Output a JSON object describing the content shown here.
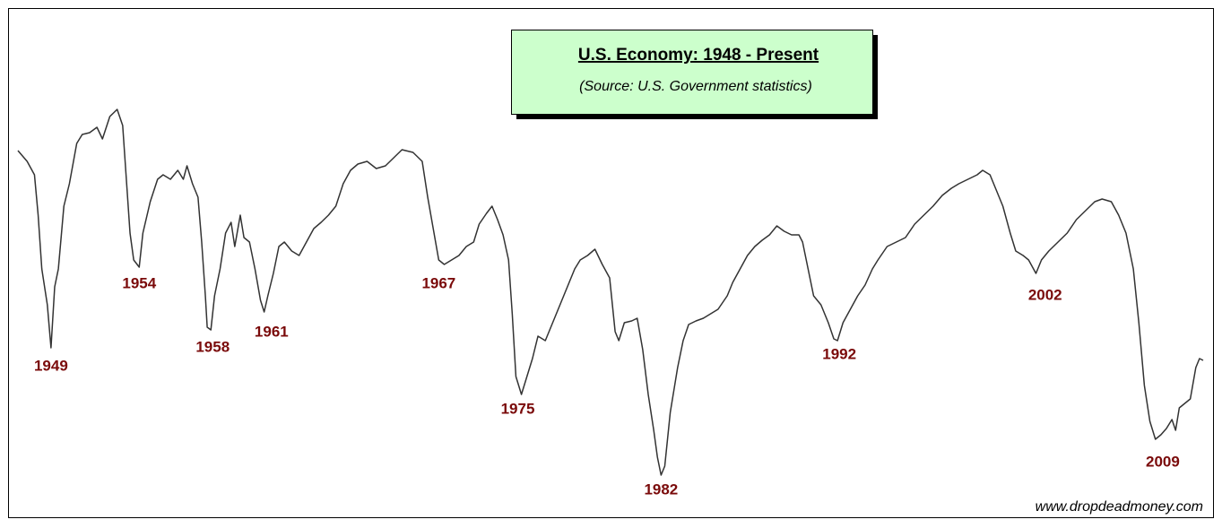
{
  "chart_data": {
    "type": "line",
    "title": "U.S. Economy: 1948 - Present",
    "subtitle": "(Source: U.S. Government statistics)",
    "credit": "www.dropdeadmoney.com",
    "xlim": [
      1948,
      2012.5
    ],
    "ylim": [
      0,
      100
    ],
    "series": [
      {
        "color": "#333333",
        "x": [
          1948.0,
          1948.5,
          1948.9,
          1949.1,
          1949.3,
          1949.6,
          1949.8,
          1950.0,
          1950.2,
          1950.5,
          1950.8,
          1951.2,
          1951.5,
          1951.9,
          1952.3,
          1952.6,
          1953.0,
          1953.4,
          1953.7,
          1953.9,
          1954.1,
          1954.3,
          1954.6,
          1954.8,
          1955.2,
          1955.6,
          1955.9,
          1956.3,
          1956.7,
          1957.0,
          1957.2,
          1957.5,
          1957.8,
          1958.0,
          1958.2,
          1958.3,
          1958.5,
          1958.7,
          1959.0,
          1959.3,
          1959.6,
          1959.8,
          1960.1,
          1960.3,
          1960.6,
          1960.9,
          1961.2,
          1961.4,
          1961.6,
          1961.9,
          1962.2,
          1962.5,
          1962.9,
          1963.3,
          1963.7,
          1964.1,
          1964.5,
          1964.9,
          1965.3,
          1965.7,
          1966.1,
          1966.5,
          1967.0,
          1967.5,
          1968.0,
          1968.5,
          1968.9,
          1969.5,
          1970.0,
          1970.3,
          1970.6,
          1970.9,
          1971.2,
          1971.6,
          1972.0,
          1972.4,
          1972.8,
          1973.1,
          1973.5,
          1973.8,
          1974.1,
          1974.4,
          1974.7,
          1974.9,
          1975.1,
          1975.4,
          1975.7,
          1976.0,
          1976.3,
          1976.7,
          1977.1,
          1977.5,
          1977.9,
          1978.3,
          1978.6,
          1979.0,
          1979.4,
          1979.8,
          1980.2,
          1980.5,
          1980.7,
          1981.0,
          1981.4,
          1981.7,
          1982.0,
          1982.3,
          1982.6,
          1982.8,
          1983.0,
          1983.2,
          1983.5,
          1983.9,
          1984.2,
          1984.5,
          1984.9,
          1985.3,
          1985.7,
          1986.1,
          1986.6,
          1986.9,
          1987.3,
          1987.7,
          1988.1,
          1988.5,
          1988.9,
          1989.3,
          1989.7,
          1990.1,
          1990.5,
          1990.7,
          1991.0,
          1991.3,
          1991.7,
          1992.1,
          1992.4,
          1992.6,
          1992.9,
          1993.3,
          1993.7,
          1994.1,
          1994.5,
          1994.8,
          1995.3,
          1995.8,
          1996.3,
          1996.8,
          1997.3,
          1997.8,
          1998.3,
          1998.8,
          1999.2,
          1999.7,
          2000.2,
          2000.5,
          2000.9,
          2001.2,
          2001.6,
          2002.0,
          2002.3,
          2002.7,
          2003.0,
          2003.4,
          2003.7,
          2004.1,
          2004.6,
          2005.1,
          2005.6,
          2006.1,
          2006.6,
          2007.0,
          2007.5,
          2007.9,
          2008.3,
          2008.7,
          2009.0,
          2009.3,
          2009.6,
          2009.9,
          2010.2,
          2010.5,
          2010.8,
          2011.0,
          2011.2,
          2011.5,
          2011.8,
          2012.1,
          2012.3,
          2012.5
        ],
        "values": [
          78.4,
          76,
          73,
          64,
          52,
          44,
          34.4,
          48,
          52,
          66,
          71,
          80,
          82,
          82.4,
          83.6,
          81,
          86,
          87.6,
          84,
          72,
          60,
          54,
          52.4,
          60,
          67,
          72,
          73,
          72,
          74,
          72,
          75,
          71,
          68,
          58,
          46,
          39,
          38.4,
          46,
          52,
          60,
          62.4,
          57,
          64,
          59,
          58,
          52,
          45,
          42.4,
          46,
          51,
          57,
          58,
          56,
          55,
          58,
          61,
          62.4,
          64,
          66,
          71,
          74,
          75.4,
          76,
          74.4,
          75,
          77,
          78.6,
          78,
          76,
          68,
          61,
          54,
          53,
          54,
          55,
          57,
          58,
          62,
          64.4,
          66,
          63,
          59.6,
          54,
          42,
          28,
          24,
          28,
          32,
          37,
          36,
          40,
          44,
          48,
          52,
          54,
          55,
          56.4,
          53,
          50,
          38,
          36,
          40,
          40.4,
          41,
          34,
          24,
          16,
          10,
          6,
          8,
          20,
          30,
          36,
          39.6,
          40.4,
          41,
          42,
          43,
          46,
          49,
          52,
          55,
          57,
          58.4,
          59.6,
          61.6,
          60.4,
          59.6,
          59.6,
          58,
          52,
          46,
          44,
          40,
          36.4,
          36,
          40,
          43,
          46,
          48.4,
          52,
          54,
          57,
          58,
          59,
          62,
          64,
          66,
          68.4,
          70,
          71,
          72,
          73,
          74,
          73,
          70,
          66,
          60,
          56,
          55,
          54,
          51,
          54,
          56,
          58,
          60,
          63,
          65,
          67,
          67.6,
          67,
          64,
          60,
          52,
          40,
          26,
          18,
          14,
          15,
          16.4,
          18.4,
          16,
          21,
          22,
          23,
          30,
          32,
          31.6
        ]
      }
    ],
    "annotations": [
      {
        "text": "1949",
        "x": 1949.8,
        "y": 30.2
      },
      {
        "text": "1954",
        "x": 1954.6,
        "y": 48.6
      },
      {
        "text": "1958",
        "x": 1958.6,
        "y": 34.4
      },
      {
        "text": "1961",
        "x": 1961.8,
        "y": 37.8
      },
      {
        "text": "1967",
        "x": 1970.9,
        "y": 48.6
      },
      {
        "text": "1975",
        "x": 1975.2,
        "y": 20.6
      },
      {
        "text": "1982",
        "x": 1983.0,
        "y": 2.6
      },
      {
        "text": "1992",
        "x": 1992.7,
        "y": 32.8
      },
      {
        "text": "2002",
        "x": 2003.9,
        "y": 46
      },
      {
        "text": "2009",
        "x": 2010.3,
        "y": 8.8
      }
    ]
  }
}
